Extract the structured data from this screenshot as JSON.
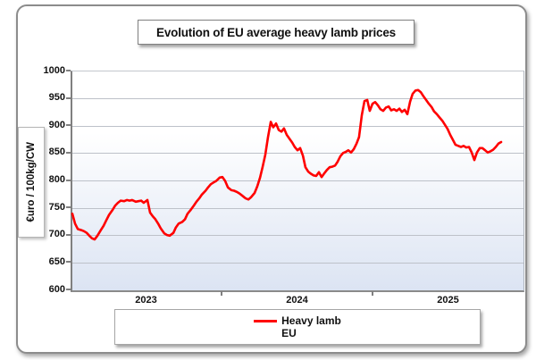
{
  "title": "Evolution of EU average heavy lamb prices",
  "y_axis": {
    "label": "€uro / 100kg/CW",
    "min": 600,
    "max": 1000,
    "step": 50
  },
  "x_axis": {
    "year_labels": [
      "2023",
      "2024",
      "2025"
    ]
  },
  "legend": {
    "series_label": "Heavy lamb",
    "region_label": "EU"
  },
  "colors": {
    "line": "#FF0000",
    "grid": "#bdc1c9",
    "axis": "#808080",
    "plot_bg_top": "#ffffff",
    "plot_bg_bottom": "#dce4f3"
  },
  "chart_data": {
    "type": "line",
    "title": "Evolution of EU average heavy lamb prices",
    "ylabel": "€uro / 100kg/CW",
    "ylim": [
      600,
      1000
    ],
    "ytick_step": 50,
    "x_unit": "decimal_year",
    "xlim": [
      2023.0,
      2026.0
    ],
    "grid": "horizontal",
    "legend_position": "bottom",
    "series": [
      {
        "name": "Heavy lamb EU",
        "color": "#FF0000",
        "points": [
          [
            2023.0,
            740
          ],
          [
            2023.018,
            722
          ],
          [
            2023.036,
            712
          ],
          [
            2023.059,
            710
          ],
          [
            2023.077,
            708
          ],
          [
            2023.095,
            705
          ],
          [
            2023.112,
            700
          ],
          [
            2023.13,
            695
          ],
          [
            2023.148,
            693
          ],
          [
            2023.166,
            700
          ],
          [
            2023.189,
            710
          ],
          [
            2023.207,
            718
          ],
          [
            2023.225,
            728
          ],
          [
            2023.243,
            738
          ],
          [
            2023.266,
            747
          ],
          [
            2023.284,
            755
          ],
          [
            2023.302,
            760
          ],
          [
            2023.32,
            764
          ],
          [
            2023.343,
            763
          ],
          [
            2023.361,
            765
          ],
          [
            2023.379,
            764
          ],
          [
            2023.396,
            765
          ],
          [
            2023.42,
            762
          ],
          [
            2023.438,
            763
          ],
          [
            2023.456,
            764
          ],
          [
            2023.473,
            760
          ],
          [
            2023.497,
            765
          ],
          [
            2023.515,
            742
          ],
          [
            2023.533,
            735
          ],
          [
            2023.55,
            730
          ],
          [
            2023.568,
            722
          ],
          [
            2023.586,
            713
          ],
          [
            2023.609,
            704
          ],
          [
            2023.627,
            701
          ],
          [
            2023.645,
            700
          ],
          [
            2023.669,
            705
          ],
          [
            2023.686,
            715
          ],
          [
            2023.704,
            722
          ],
          [
            2023.728,
            725
          ],
          [
            2023.746,
            730
          ],
          [
            2023.763,
            740
          ],
          [
            2023.781,
            746
          ],
          [
            2023.805,
            755
          ],
          [
            2023.822,
            762
          ],
          [
            2023.84,
            768
          ],
          [
            2023.858,
            775
          ],
          [
            2023.882,
            782
          ],
          [
            2023.899,
            788
          ],
          [
            2023.917,
            794
          ],
          [
            2023.935,
            797
          ],
          [
            2023.953,
            800
          ],
          [
            2023.976,
            806
          ],
          [
            2023.994,
            807
          ],
          [
            2024.012,
            800
          ],
          [
            2024.03,
            788
          ],
          [
            2024.053,
            783
          ],
          [
            2024.071,
            782
          ],
          [
            2024.089,
            780
          ],
          [
            2024.107,
            777
          ],
          [
            2024.13,
            772
          ],
          [
            2024.148,
            768
          ],
          [
            2024.166,
            766
          ],
          [
            2024.183,
            770
          ],
          [
            2024.207,
            778
          ],
          [
            2024.225,
            790
          ],
          [
            2024.243,
            806
          ],
          [
            2024.26,
            825
          ],
          [
            2024.278,
            848
          ],
          [
            2024.296,
            880
          ],
          [
            2024.314,
            908
          ],
          [
            2024.331,
            898
          ],
          [
            2024.349,
            905
          ],
          [
            2024.367,
            893
          ],
          [
            2024.385,
            890
          ],
          [
            2024.402,
            896
          ],
          [
            2024.42,
            884
          ],
          [
            2024.438,
            877
          ],
          [
            2024.456,
            870
          ],
          [
            2024.473,
            862
          ],
          [
            2024.491,
            856
          ],
          [
            2024.509,
            860
          ],
          [
            2024.527,
            846
          ],
          [
            2024.544,
            825
          ],
          [
            2024.562,
            817
          ],
          [
            2024.58,
            813
          ],
          [
            2024.598,
            810
          ],
          [
            2024.615,
            809
          ],
          [
            2024.633,
            816
          ],
          [
            2024.651,
            807
          ],
          [
            2024.669,
            814
          ],
          [
            2024.686,
            820
          ],
          [
            2024.704,
            825
          ],
          [
            2024.722,
            826
          ],
          [
            2024.74,
            828
          ],
          [
            2024.757,
            835
          ],
          [
            2024.775,
            845
          ],
          [
            2024.793,
            851
          ],
          [
            2024.811,
            853
          ],
          [
            2024.828,
            856
          ],
          [
            2024.846,
            852
          ],
          [
            2024.864,
            858
          ],
          [
            2024.882,
            868
          ],
          [
            2024.899,
            880
          ],
          [
            2024.917,
            920
          ],
          [
            2024.935,
            946
          ],
          [
            2024.953,
            948
          ],
          [
            2024.97,
            928
          ],
          [
            2024.988,
            941
          ],
          [
            2025.006,
            944
          ],
          [
            2025.024,
            938
          ],
          [
            2025.041,
            931
          ],
          [
            2025.059,
            928
          ],
          [
            2025.077,
            934
          ],
          [
            2025.095,
            936
          ],
          [
            2025.112,
            929
          ],
          [
            2025.13,
            931
          ],
          [
            2025.148,
            928
          ],
          [
            2025.166,
            932
          ],
          [
            2025.183,
            926
          ],
          [
            2025.201,
            930
          ],
          [
            2025.219,
            922
          ],
          [
            2025.237,
            945
          ],
          [
            2025.254,
            959
          ],
          [
            2025.272,
            965
          ],
          [
            2025.29,
            966
          ],
          [
            2025.308,
            962
          ],
          [
            2025.325,
            955
          ],
          [
            2025.343,
            948
          ],
          [
            2025.361,
            941
          ],
          [
            2025.379,
            935
          ],
          [
            2025.396,
            927
          ],
          [
            2025.414,
            922
          ],
          [
            2025.432,
            916
          ],
          [
            2025.45,
            910
          ],
          [
            2025.467,
            903
          ],
          [
            2025.485,
            895
          ],
          [
            2025.503,
            884
          ],
          [
            2025.521,
            875
          ],
          [
            2025.538,
            866
          ],
          [
            2025.556,
            864
          ],
          [
            2025.574,
            862
          ],
          [
            2025.592,
            864
          ],
          [
            2025.609,
            861
          ],
          [
            2025.627,
            862
          ],
          [
            2025.645,
            852
          ],
          [
            2025.663,
            838
          ],
          [
            2025.68,
            852
          ],
          [
            2025.698,
            860
          ],
          [
            2025.716,
            860
          ],
          [
            2025.734,
            856
          ],
          [
            2025.751,
            852
          ],
          [
            2025.769,
            854
          ],
          [
            2025.787,
            857
          ],
          [
            2025.805,
            862
          ],
          [
            2025.822,
            868
          ],
          [
            2025.84,
            871
          ]
        ]
      }
    ]
  }
}
